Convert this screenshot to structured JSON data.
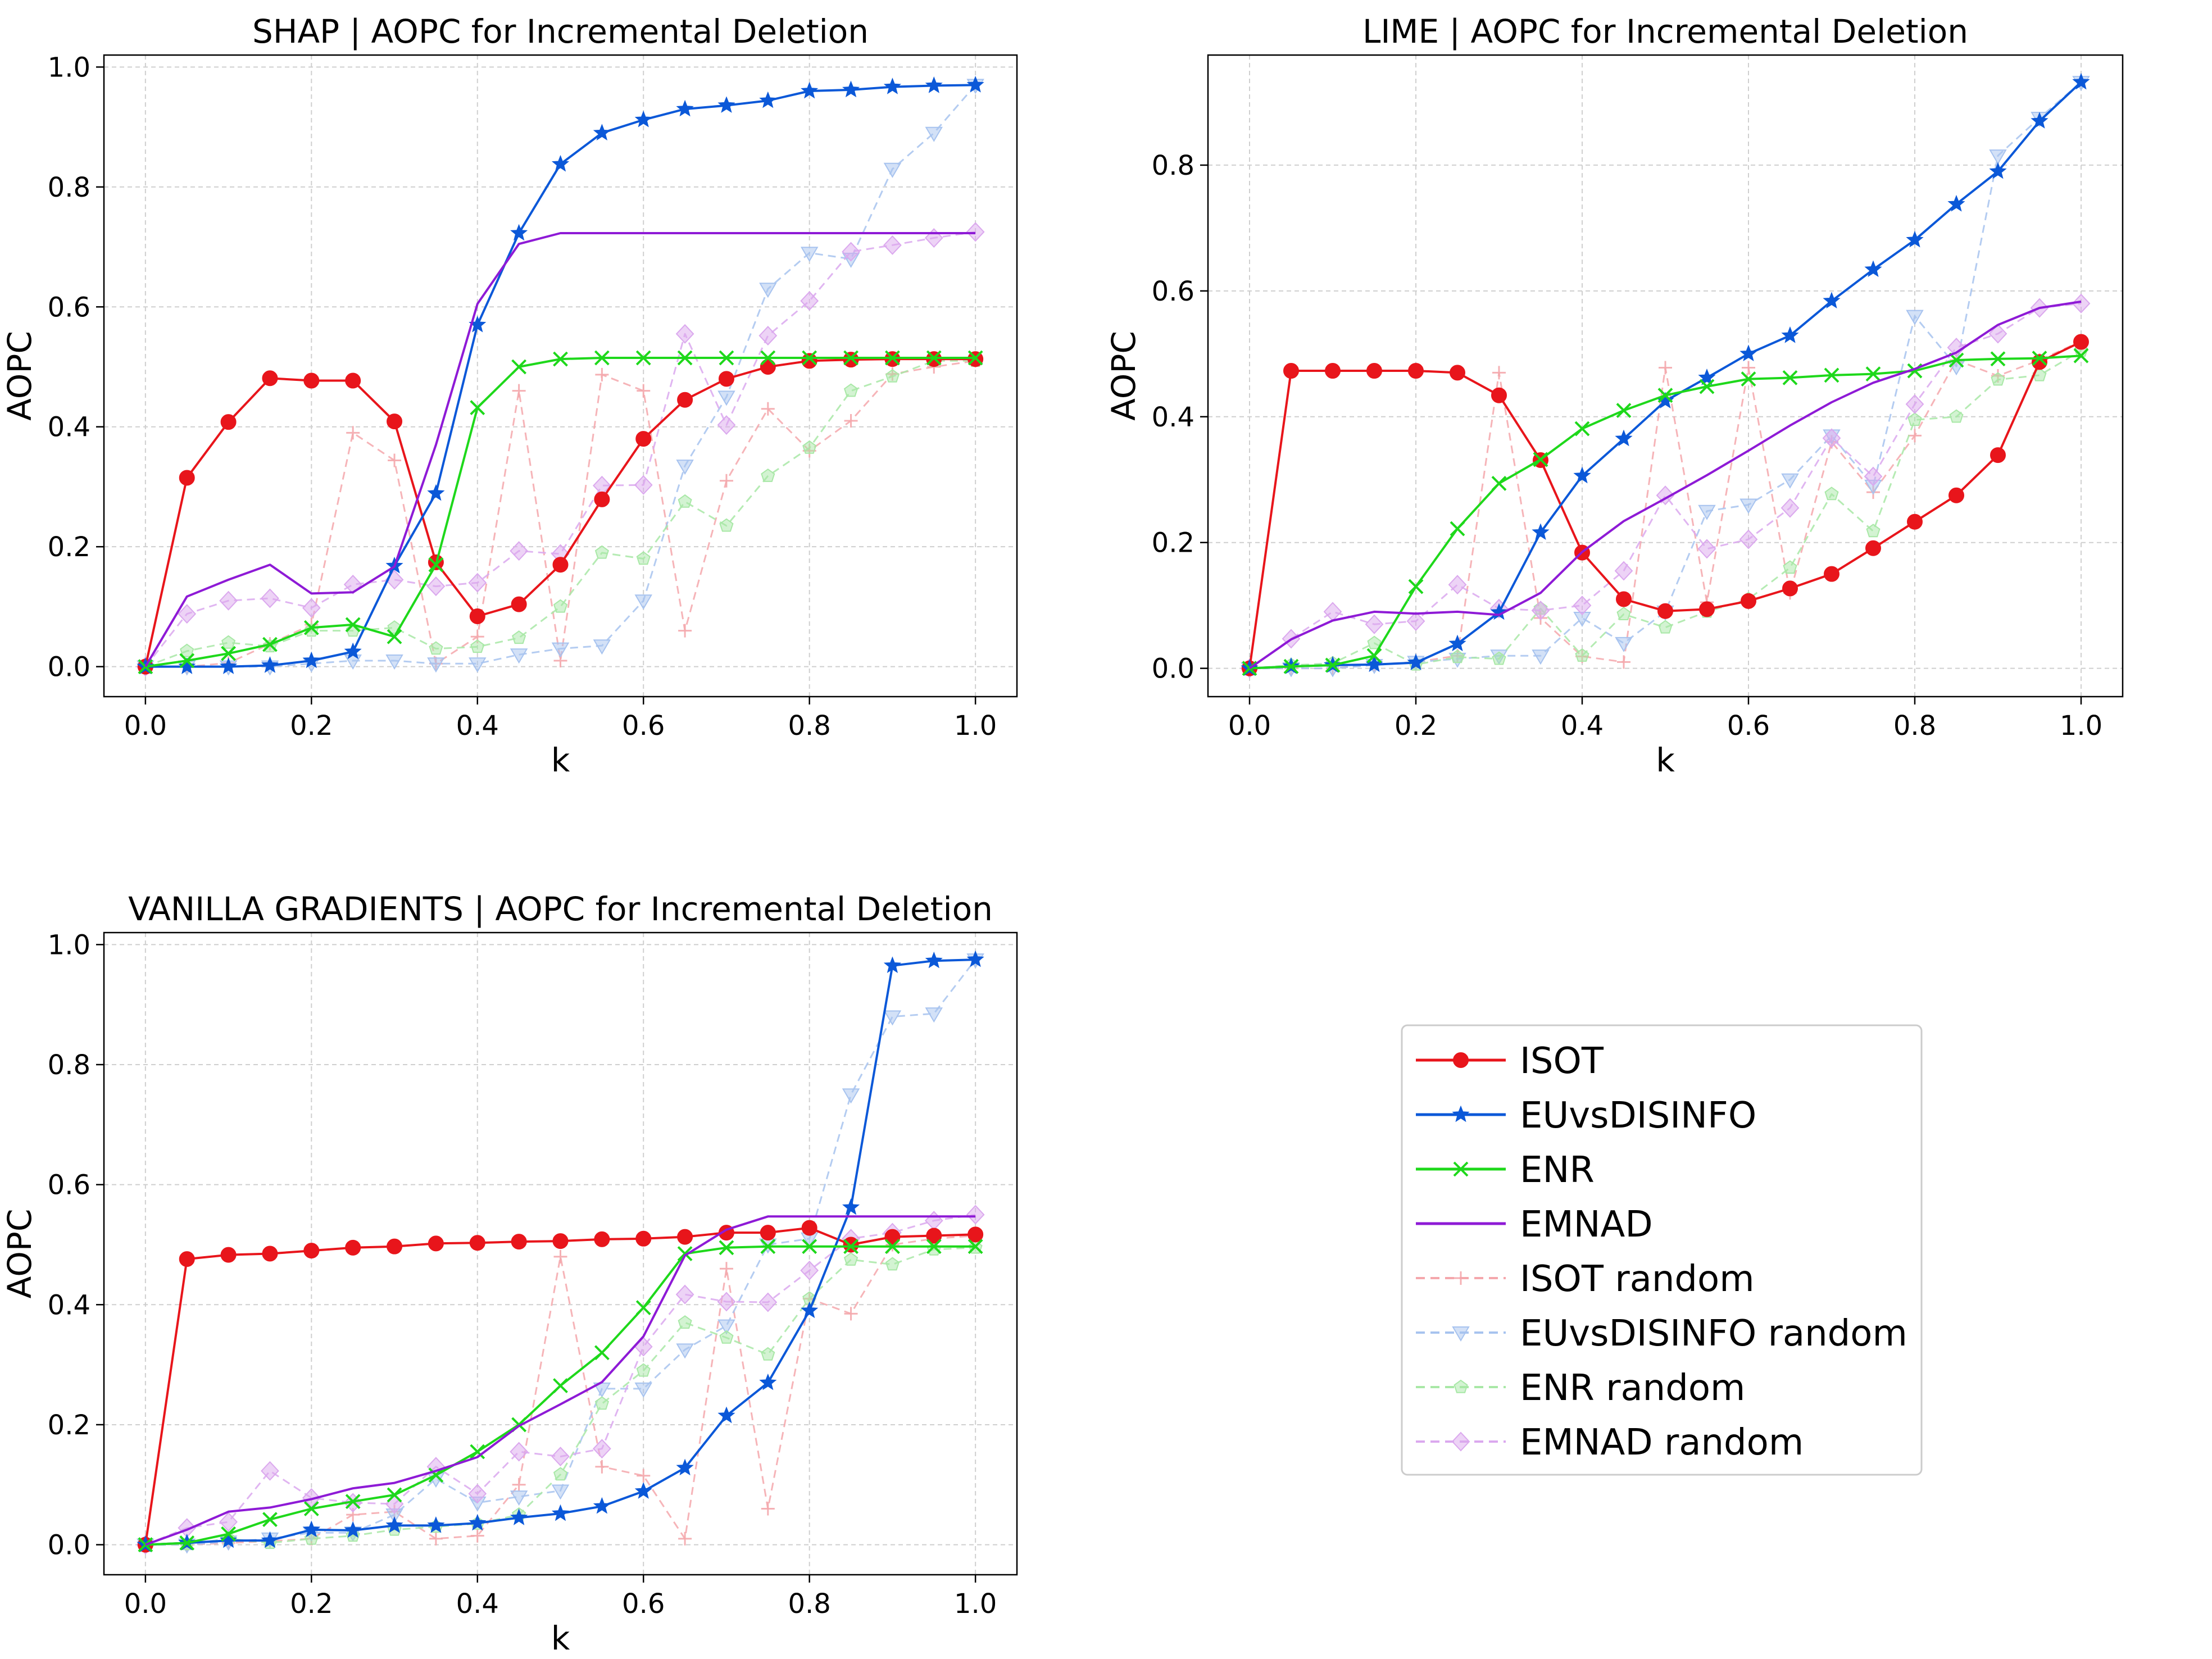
{
  "series_styles": {
    "ISOT": {
      "color": "#e8151b",
      "marker": "circle",
      "dashed": false
    },
    "EUvsDISINFO": {
      "color": "#0b58d8",
      "marker": "star",
      "dashed": false
    },
    "ENR": {
      "color": "#1ed81b",
      "marker": "x",
      "dashed": false
    },
    "EMNAD": {
      "color": "#8e1ad6",
      "marker": "none",
      "dashed": false
    },
    "ISOT random": {
      "color": "#f4a7ac",
      "marker": "plus",
      "dashed": true
    },
    "EUvsDISINFO random": {
      "color": "#a7c3ef",
      "marker": "triangle-down",
      "dashed": true
    },
    "ENR random": {
      "color": "#a8e8a6",
      "marker": "pentagon",
      "dashed": true
    },
    "EMNAD random": {
      "color": "#dba8ee",
      "marker": "diamond",
      "dashed": true
    }
  },
  "legend": {
    "entries": [
      "ISOT",
      "EUvsDISINFO",
      "ENR",
      "EMNAD",
      "ISOT random",
      "EUvsDISINFO random",
      "ENR random",
      "EMNAD random"
    ]
  },
  "chart_data": [
    {
      "type": "line",
      "title": "SHAP | AOPC for Incremental Deletion",
      "xlabel": "k",
      "ylabel": "AOPC",
      "xlim": [
        -0.05,
        1.05
      ],
      "ylim": [
        -0.05,
        1.02
      ],
      "xticks": [
        "0.0",
        "0.2",
        "0.4",
        "0.6",
        "0.8",
        "1.0"
      ],
      "yticks": [
        "0.0",
        "0.2",
        "0.4",
        "0.6",
        "0.8",
        "1.0"
      ],
      "grid": true,
      "x": [
        0.0,
        0.05,
        0.1,
        0.15,
        0.2,
        0.25,
        0.3,
        0.35,
        0.4,
        0.45,
        0.5,
        0.55,
        0.6,
        0.65,
        0.7,
        0.75,
        0.8,
        0.85,
        0.9,
        0.95,
        1.0
      ],
      "series": [
        {
          "name": "ISOT",
          "values": [
            0.0,
            0.315,
            0.408,
            0.481,
            0.477,
            0.477,
            0.409,
            0.174,
            0.084,
            0.104,
            0.17,
            0.279,
            0.38,
            0.445,
            0.48,
            0.5,
            0.51,
            0.512,
            0.513,
            0.513,
            0.513
          ]
        },
        {
          "name": "EUvsDISINFO",
          "values": [
            0.0,
            0.0,
            0.0,
            0.002,
            0.01,
            0.025,
            0.168,
            0.289,
            0.57,
            0.723,
            0.838,
            0.89,
            0.912,
            0.93,
            0.936,
            0.944,
            0.96,
            0.962,
            0.967,
            0.969,
            0.97
          ]
        },
        {
          "name": "ENR",
          "values": [
            0.0,
            0.01,
            0.022,
            0.037,
            0.065,
            0.07,
            0.05,
            0.17,
            0.432,
            0.5,
            0.513,
            0.515,
            0.515,
            0.515,
            0.515,
            0.515,
            0.515,
            0.515,
            0.515,
            0.515,
            0.515
          ]
        },
        {
          "name": "EMNAD",
          "values": [
            0.0,
            0.117,
            0.145,
            0.17,
            0.122,
            0.124,
            0.167,
            0.37,
            0.605,
            0.705,
            0.723,
            0.723,
            0.723,
            0.723,
            0.723,
            0.723,
            0.723,
            0.723,
            0.723,
            0.723,
            0.723
          ]
        },
        {
          "name": "ISOT random",
          "values": [
            0.0,
            0.0,
            0.006,
            0.038,
            0.07,
            0.39,
            0.344,
            0.005,
            0.05,
            0.46,
            0.01,
            0.487,
            0.46,
            0.06,
            0.31,
            0.43,
            0.36,
            0.41,
            0.488,
            0.5,
            0.51
          ]
        },
        {
          "name": "EUvsDISINFO random",
          "values": [
            0.0,
            0.0,
            0.0,
            0.0,
            0.005,
            0.01,
            0.01,
            0.005,
            0.005,
            0.02,
            0.03,
            0.035,
            0.11,
            0.335,
            0.45,
            0.63,
            0.69,
            0.68,
            0.83,
            0.89,
            0.97
          ]
        },
        {
          "name": "ENR random",
          "values": [
            0.0,
            0.026,
            0.04,
            0.034,
            0.06,
            0.06,
            0.065,
            0.03,
            0.033,
            0.048,
            0.1,
            0.19,
            0.18,
            0.275,
            0.235,
            0.318,
            0.365,
            0.46,
            0.484,
            0.51,
            0.51
          ]
        },
        {
          "name": "EMNAD random",
          "values": [
            0.0,
            0.088,
            0.11,
            0.114,
            0.098,
            0.137,
            0.145,
            0.134,
            0.14,
            0.193,
            0.188,
            0.302,
            0.303,
            0.555,
            0.403,
            0.552,
            0.61,
            0.692,
            0.703,
            0.715,
            0.725
          ]
        }
      ]
    },
    {
      "type": "line",
      "title": "LIME | AOPC for Incremental Deletion",
      "xlabel": "k",
      "ylabel": "AOPC",
      "xlim": [
        -0.05,
        1.05
      ],
      "ylim": [
        -0.045,
        0.975
      ],
      "xticks": [
        "0.0",
        "0.2",
        "0.4",
        "0.6",
        "0.8",
        "1.0"
      ],
      "yticks": [
        "0.0",
        "0.2",
        "0.4",
        "0.6",
        "0.8"
      ],
      "grid": true,
      "x": [
        0.0,
        0.05,
        0.1,
        0.15,
        0.2,
        0.25,
        0.3,
        0.35,
        0.4,
        0.45,
        0.5,
        0.55,
        0.6,
        0.65,
        0.7,
        0.75,
        0.8,
        0.85,
        0.9,
        0.95,
        1.0
      ],
      "series": [
        {
          "name": "ISOT",
          "values": [
            0.0,
            0.473,
            0.473,
            0.473,
            0.473,
            0.47,
            0.434,
            0.331,
            0.184,
            0.11,
            0.091,
            0.094,
            0.107,
            0.127,
            0.15,
            0.191,
            0.233,
            0.275,
            0.339,
            0.487,
            0.519
          ]
        },
        {
          "name": "EUvsDISINFO",
          "values": [
            0.0,
            0.003,
            0.005,
            0.006,
            0.009,
            0.039,
            0.089,
            0.216,
            0.306,
            0.365,
            0.425,
            0.462,
            0.5,
            0.529,
            0.584,
            0.634,
            0.681,
            0.738,
            0.79,
            0.87,
            0.932
          ]
        },
        {
          "name": "ENR",
          "values": [
            0.0,
            0.003,
            0.005,
            0.02,
            0.13,
            0.222,
            0.294,
            0.332,
            0.381,
            0.41,
            0.434,
            0.448,
            0.46,
            0.462,
            0.466,
            0.468,
            0.473,
            0.49,
            0.492,
            0.493,
            0.497
          ]
        },
        {
          "name": "EMNAD",
          "values": [
            0.0,
            0.046,
            0.076,
            0.09,
            0.087,
            0.09,
            0.085,
            0.12,
            0.185,
            0.234,
            0.27,
            0.307,
            0.346,
            0.386,
            0.423,
            0.454,
            0.476,
            0.502,
            0.546,
            0.573,
            0.583
          ]
        },
        {
          "name": "ISOT random",
          "values": [
            0.0,
            0.0,
            0.0,
            0.006,
            0.01,
            0.02,
            0.47,
            0.08,
            0.019,
            0.01,
            0.478,
            0.105,
            0.478,
            0.12,
            0.36,
            0.28,
            0.37,
            0.49,
            0.465,
            0.49,
            0.52
          ]
        },
        {
          "name": "EUvsDISINFO random",
          "values": [
            0.0,
            0.0,
            0.0,
            0.005,
            0.01,
            0.015,
            0.02,
            0.02,
            0.08,
            0.04,
            0.09,
            0.25,
            0.26,
            0.3,
            0.37,
            0.29,
            0.56,
            0.48,
            0.815,
            0.875,
            0.932
          ]
        },
        {
          "name": "ENR random",
          "values": [
            0.0,
            0.005,
            0.008,
            0.04,
            0.006,
            0.018,
            0.015,
            0.095,
            0.02,
            0.086,
            0.065,
            0.09,
            0.11,
            0.16,
            0.277,
            0.218,
            0.395,
            0.4,
            0.459,
            0.466,
            0.505
          ]
        },
        {
          "name": "EMNAD random",
          "values": [
            0.0,
            0.047,
            0.09,
            0.07,
            0.075,
            0.133,
            0.095,
            0.092,
            0.1,
            0.155,
            0.275,
            0.19,
            0.205,
            0.255,
            0.366,
            0.305,
            0.42,
            0.51,
            0.532,
            0.573,
            0.58
          ]
        }
      ]
    },
    {
      "type": "line",
      "title": "VANILLA GRADIENTS | AOPC for Incremental Deletion",
      "xlabel": "k",
      "ylabel": "AOPC",
      "xlim": [
        -0.05,
        1.05
      ],
      "ylim": [
        -0.05,
        1.02
      ],
      "xticks": [
        "0.0",
        "0.2",
        "0.4",
        "0.6",
        "0.8",
        "1.0"
      ],
      "yticks": [
        "0.0",
        "0.2",
        "0.4",
        "0.6",
        "0.8",
        "1.0"
      ],
      "grid": true,
      "x": [
        0.0,
        0.05,
        0.1,
        0.15,
        0.2,
        0.25,
        0.3,
        0.35,
        0.4,
        0.45,
        0.5,
        0.55,
        0.6,
        0.65,
        0.7,
        0.75,
        0.8,
        0.85,
        0.9,
        0.95,
        1.0
      ],
      "series": [
        {
          "name": "ISOT",
          "values": [
            0.0,
            0.476,
            0.483,
            0.485,
            0.49,
            0.495,
            0.497,
            0.502,
            0.503,
            0.505,
            0.506,
            0.509,
            0.51,
            0.513,
            0.52,
            0.52,
            0.528,
            0.5,
            0.513,
            0.515,
            0.517
          ]
        },
        {
          "name": "EUvsDISINFO",
          "values": [
            0.0,
            0.003,
            0.007,
            0.007,
            0.025,
            0.024,
            0.032,
            0.032,
            0.036,
            0.045,
            0.052,
            0.064,
            0.089,
            0.128,
            0.215,
            0.27,
            0.39,
            0.562,
            0.965,
            0.973,
            0.975
          ]
        },
        {
          "name": "ENR",
          "values": [
            0.0,
            0.003,
            0.018,
            0.042,
            0.06,
            0.072,
            0.083,
            0.116,
            0.155,
            0.2,
            0.265,
            0.32,
            0.395,
            0.485,
            0.495,
            0.497,
            0.497,
            0.497,
            0.497,
            0.497,
            0.497
          ]
        },
        {
          "name": "EMNAD",
          "values": [
            0.0,
            0.025,
            0.055,
            0.062,
            0.076,
            0.094,
            0.103,
            0.123,
            0.146,
            0.198,
            0.234,
            0.271,
            0.347,
            0.482,
            0.525,
            0.547,
            0.547,
            0.547,
            0.547,
            0.547,
            0.547
          ]
        },
        {
          "name": "ISOT random",
          "values": [
            0.0,
            0.0,
            0.003,
            0.006,
            0.01,
            0.05,
            0.055,
            0.01,
            0.015,
            0.1,
            0.48,
            0.13,
            0.115,
            0.01,
            0.46,
            0.06,
            0.41,
            0.385,
            0.5,
            0.51,
            0.515
          ]
        },
        {
          "name": "EUvsDISINFO random",
          "values": [
            0.0,
            0.0,
            0.005,
            0.01,
            0.02,
            0.02,
            0.05,
            0.11,
            0.07,
            0.08,
            0.09,
            0.26,
            0.26,
            0.325,
            0.365,
            0.5,
            0.51,
            0.75,
            0.88,
            0.885,
            0.975
          ]
        },
        {
          "name": "ENR random",
          "values": [
            0.0,
            0.001,
            0.01,
            0.003,
            0.01,
            0.015,
            0.025,
            0.03,
            0.035,
            0.05,
            0.117,
            0.235,
            0.29,
            0.37,
            0.345,
            0.317,
            0.41,
            0.475,
            0.467,
            0.492,
            0.495
          ]
        },
        {
          "name": "EMNAD random",
          "values": [
            0.0,
            0.028,
            0.038,
            0.123,
            0.078,
            0.07,
            0.068,
            0.13,
            0.085,
            0.155,
            0.147,
            0.16,
            0.33,
            0.417,
            0.405,
            0.404,
            0.457,
            0.51,
            0.52,
            0.54,
            0.55
          ]
        }
      ]
    }
  ]
}
